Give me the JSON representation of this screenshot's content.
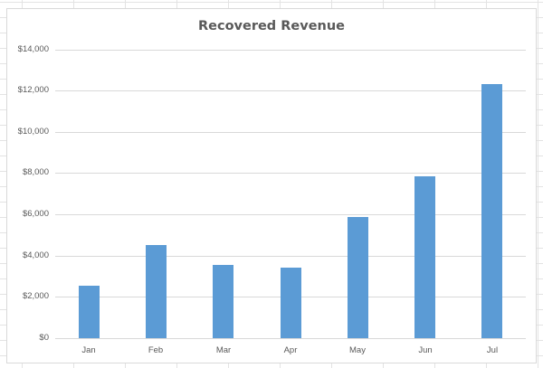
{
  "chart_data": {
    "type": "bar",
    "title": "Recovered Revenue",
    "xlabel": "",
    "ylabel": "",
    "categories": [
      "Jan",
      "Feb",
      "Mar",
      "Apr",
      "May",
      "Jun",
      "Jul"
    ],
    "values": [
      2550,
      4500,
      3550,
      3400,
      5850,
      7850,
      12300
    ],
    "ylim": [
      0,
      14000
    ],
    "yticks": [
      0,
      2000,
      4000,
      6000,
      8000,
      10000,
      12000,
      14000
    ],
    "ytick_labels": [
      "$0",
      "$2,000",
      "$4,000",
      "$6,000",
      "$8,000",
      "$10,000",
      "$12,000",
      "$14,000"
    ],
    "grid": true,
    "legend": null,
    "colors": {
      "bar": "#5b9bd5",
      "gridline": "#d9d9d9",
      "text": "#595959"
    }
  }
}
